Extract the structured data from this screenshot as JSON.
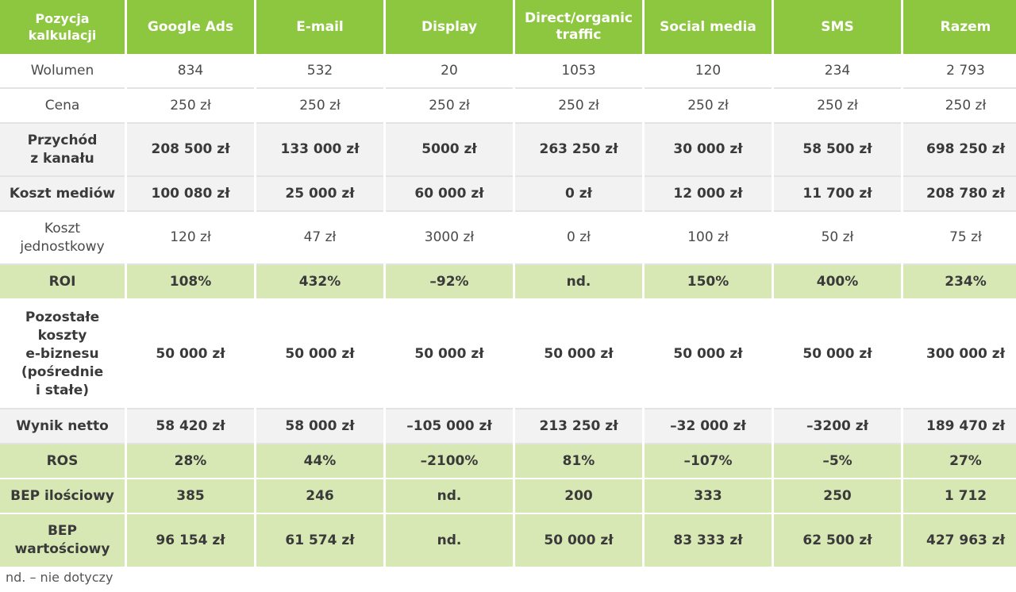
{
  "table": {
    "headers": [
      "Pozycja\nkalkulacji",
      "Google Ads",
      "E-mail",
      "Display",
      "Direct/organic\ntraffic",
      "Social media",
      "SMS",
      "Razem"
    ],
    "rows": [
      {
        "style": "plain",
        "cells": [
          "Wolumen",
          "834",
          "532",
          "20",
          "1053",
          "120",
          "234",
          "2 793"
        ]
      },
      {
        "style": "plain",
        "cells": [
          "Cena",
          "250 zł",
          "250 zł",
          "250 zł",
          "250 zł",
          "250 zł",
          "250 zł",
          "250 zł"
        ]
      },
      {
        "style": "bold",
        "cells": [
          "Przychód\nz kanału",
          "208 500 zł",
          "133 000 zł",
          "5000 zł",
          "263 250 zł",
          "30 000 zł",
          "58 500 zł",
          "698 250 zł"
        ]
      },
      {
        "style": "bold",
        "cells": [
          "Koszt mediów",
          "100 080 zł",
          "25 000 zł",
          "60 000 zł",
          "0 zł",
          "12 000 zł",
          "11 700 zł",
          "208 780 zł"
        ]
      },
      {
        "style": "plain",
        "cells": [
          "Koszt\njednostkowy",
          "120 zł",
          "47 zł",
          "3000 zł",
          "0 zł",
          "100 zł",
          "50 zł",
          "75 zł"
        ]
      },
      {
        "style": "green",
        "cells": [
          "ROI",
          "108%",
          "432%",
          "–92%",
          "nd.",
          "150%",
          "400%",
          "234%"
        ]
      },
      {
        "style": "bold-white",
        "cells": [
          "Pozostałe\nkoszty\ne-biznesu\n(pośrednie\ni stałe)",
          "50 000 zł",
          "50 000 zł",
          "50 000 zł",
          "50 000 zł",
          "50 000 zł",
          "50 000 zł",
          "300 000 zł"
        ]
      },
      {
        "style": "bold",
        "cells": [
          "Wynik netto",
          "58 420 zł",
          "58 000 zł",
          "–105 000 zł",
          "213 250 zł",
          "–32 000 zł",
          "–3200 zł",
          "189 470 zł"
        ]
      },
      {
        "style": "green",
        "cells": [
          "ROS",
          "28%",
          "44%",
          "–2100%",
          "81%",
          "–107%",
          "–5%",
          "27%"
        ]
      },
      {
        "style": "green",
        "cells": [
          "BEP ilościowy",
          "385",
          "246",
          "nd.",
          "200",
          "333",
          "250",
          "1 712"
        ]
      },
      {
        "style": "green",
        "cells": [
          "BEP\nwartościowy",
          "96 154 zł",
          "61 574 zł",
          "nd.",
          "50 000 zł",
          "83 333 zł",
          "62 500 zł",
          "427 963 zł"
        ]
      }
    ]
  },
  "footnote": "nd. – nie dotyczy",
  "colors": {
    "header_green": "#8dc63f",
    "light_green": "#d8e8b4",
    "gray_row": "#f2f2f2"
  }
}
